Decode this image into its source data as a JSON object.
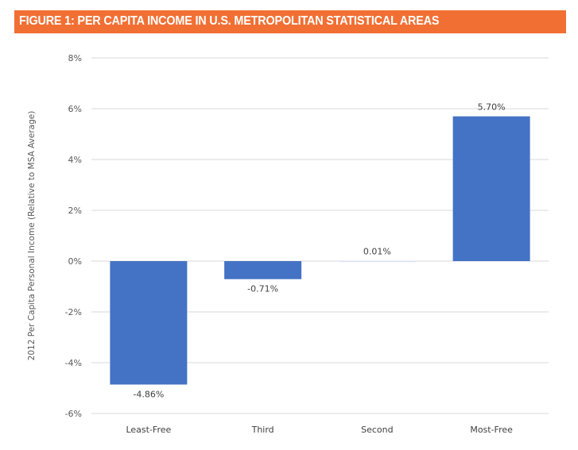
{
  "header": {
    "title": "FIGURE 1: PER CAPITA INCOME IN U.S. METROPOLITAN STATISTICAL AREAS"
  },
  "chart_data": {
    "type": "bar",
    "title": "FIGURE 1: PER CAPITA INCOME IN U.S. METROPOLITAN STATISTICAL AREAS",
    "categories": [
      "Least-Free",
      "Third",
      "Second",
      "Most-Free"
    ],
    "values": [
      -4.86,
      -0.71,
      0.01,
      5.7
    ],
    "data_labels": [
      "-4.86%",
      "-0.71%",
      "0.01%",
      "5.70%"
    ],
    "xlabel": "",
    "ylabel": "2012 Per Capita Personal Income (Relative to MSA Average)",
    "ylim": [
      -6,
      8
    ],
    "yticks": [
      -6,
      -4,
      -2,
      0,
      2,
      4,
      6,
      8
    ],
    "ytick_labels": [
      "-6%",
      "-4%",
      "-2%",
      "0%",
      "2%",
      "4%",
      "6%",
      "8%"
    ],
    "grid": true,
    "bar_color": "#4472c4"
  }
}
